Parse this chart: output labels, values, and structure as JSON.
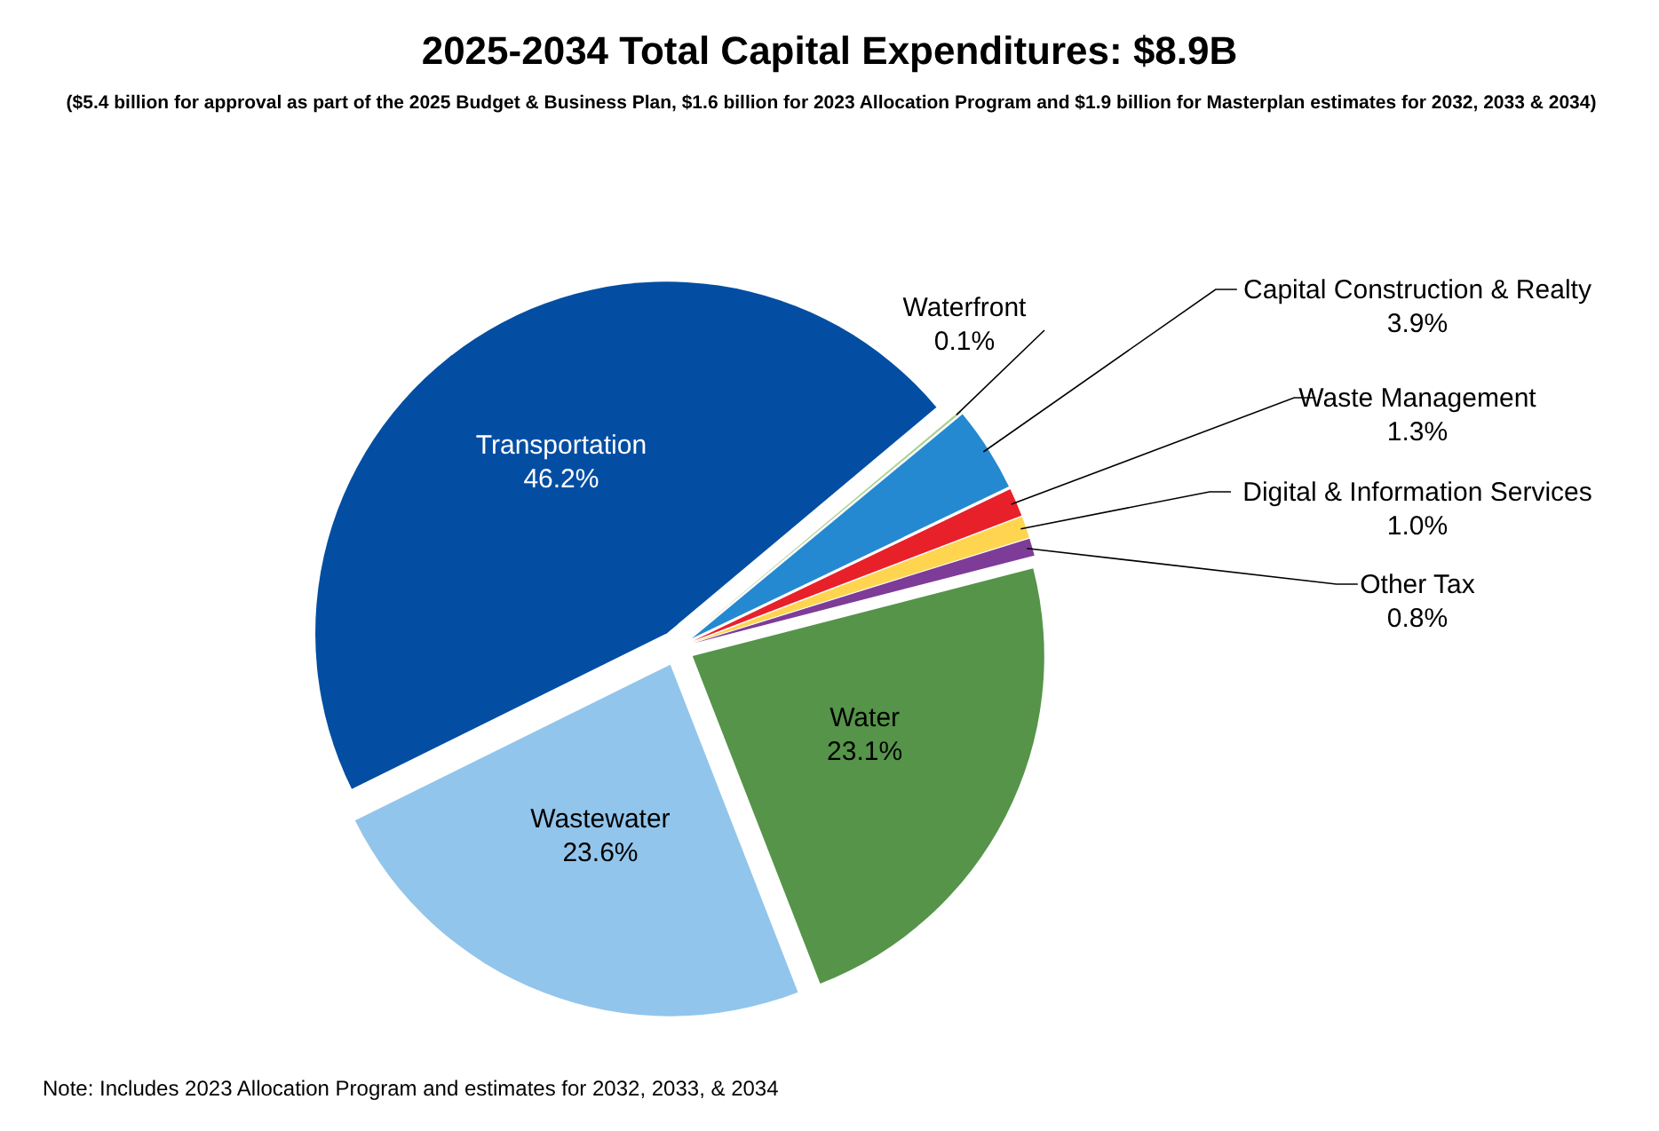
{
  "chart_data": {
    "type": "pie",
    "title": "2025-2034 Total Capital Expenditures:  $8.9B",
    "subtitle": "($5.4 billion for approval as part of the 2025 Budget & Business Plan, $1.6 billion for 2023 Allocation Program and $1.9 billion for Masterplan estimates for 2032, 2033 & 2034)",
    "categories": [
      "Transportation",
      "Wastewater",
      "Water",
      "Other Tax",
      "Digital & Information Services",
      "Waste Management",
      "Capital Construction & Realty",
      "Waterfront"
    ],
    "values": [
      46.2,
      23.6,
      23.1,
      0.8,
      1.0,
      1.3,
      3.9,
      0.1
    ],
    "value_labels": [
      "46.2%",
      "23.6%",
      "23.1%",
      "0.8%",
      "1.0%",
      "1.3%",
      "3.9%",
      "0.1%"
    ],
    "colors": [
      "#034ea2",
      "#92c5eb",
      "#559449",
      "#7d3c98",
      "#ffd54f",
      "#e8202a",
      "#2589d1",
      "#a9d18e"
    ],
    "annotations": [
      "Note:  Includes 2023 Allocation Program and estimates for 2032, 2033, & 2034"
    ],
    "legend": false
  }
}
